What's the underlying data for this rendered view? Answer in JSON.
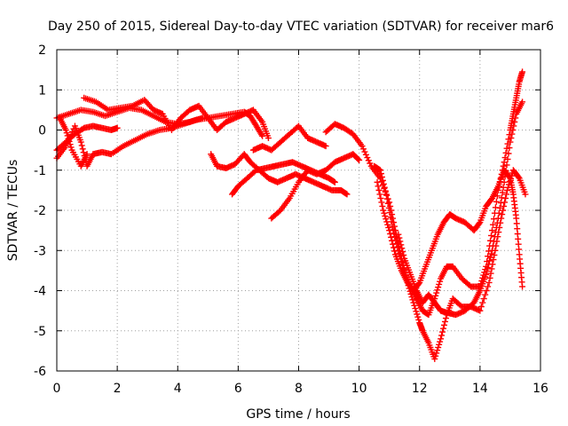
{
  "chart_data": {
    "type": "scatter",
    "title": "Day 250 of 2015, Sidereal Day-to-day VTEC variation (SDTVAR) for receiver mar6",
    "xlabel": "GPS time / hours",
    "ylabel": "SDTVAR / TECUs",
    "xlim": [
      0,
      16
    ],
    "ylim": [
      -6,
      2
    ],
    "x_ticks": [
      "0",
      "2",
      "4",
      "6",
      "8",
      "10",
      "12",
      "14",
      "16"
    ],
    "y_ticks": [
      "-6",
      "-5",
      "-4",
      "-3",
      "-2",
      "-1",
      "0",
      "1",
      "2"
    ],
    "grid": true,
    "marker": "+",
    "color": "#ff0000",
    "tracks": [
      {
        "points": [
          [
            0.0,
            0.3
          ],
          [
            0.4,
            0.4
          ],
          [
            0.8,
            0.5
          ],
          [
            1.2,
            0.45
          ],
          [
            1.6,
            0.35
          ],
          [
            2.0,
            0.45
          ],
          [
            2.4,
            0.55
          ],
          [
            2.8,
            0.5
          ],
          [
            3.2,
            0.35
          ],
          [
            3.6,
            0.2
          ],
          [
            4.0,
            0.15
          ],
          [
            4.4,
            0.2
          ],
          [
            4.8,
            0.3
          ]
        ]
      },
      {
        "points": [
          [
            0.0,
            -0.5
          ],
          [
            0.3,
            -0.3
          ],
          [
            0.6,
            -0.1
          ],
          [
            0.9,
            0.05
          ],
          [
            1.2,
            0.1
          ],
          [
            1.5,
            0.05
          ],
          [
            1.8,
            0.0
          ],
          [
            2.0,
            0.05
          ]
        ]
      },
      {
        "points": [
          [
            0.0,
            -0.7
          ],
          [
            0.3,
            -0.4
          ],
          [
            0.6,
            0.1
          ],
          [
            0.8,
            -0.3
          ],
          [
            1.0,
            -0.9
          ],
          [
            1.2,
            -0.6
          ],
          [
            1.5,
            -0.55
          ],
          [
            1.8,
            -0.6
          ],
          [
            2.2,
            -0.4
          ],
          [
            2.6,
            -0.25
          ],
          [
            3.0,
            -0.1
          ],
          [
            3.4,
            0.0
          ],
          [
            3.8,
            0.05
          ],
          [
            4.2,
            0.15
          ],
          [
            4.6,
            0.25
          ],
          [
            5.0,
            0.3
          ],
          [
            5.4,
            0.35
          ],
          [
            5.8,
            0.4
          ],
          [
            6.2,
            0.45
          ],
          [
            6.4,
            0.35
          ],
          [
            6.6,
            0.1
          ],
          [
            6.8,
            -0.15
          ]
        ]
      },
      {
        "points": [
          [
            0.1,
            0.3
          ],
          [
            0.3,
            0.0
          ],
          [
            0.5,
            -0.5
          ],
          [
            0.8,
            -0.9
          ],
          [
            1.0,
            -0.6
          ]
        ]
      },
      {
        "points": [
          [
            0.9,
            0.8
          ],
          [
            1.3,
            0.7
          ],
          [
            1.7,
            0.5
          ],
          [
            2.1,
            0.55
          ],
          [
            2.5,
            0.6
          ],
          [
            2.9,
            0.75
          ],
          [
            3.2,
            0.5
          ],
          [
            3.5,
            0.4
          ],
          [
            3.8,
            0.0
          ],
          [
            4.1,
            0.3
          ],
          [
            4.4,
            0.5
          ],
          [
            4.7,
            0.6
          ],
          [
            5.0,
            0.3
          ],
          [
            5.3,
            0.0
          ],
          [
            5.6,
            0.2
          ],
          [
            5.9,
            0.3
          ],
          [
            6.2,
            0.4
          ],
          [
            6.5,
            0.5
          ],
          [
            6.8,
            0.2
          ],
          [
            7.0,
            -0.2
          ]
        ]
      },
      {
        "points": [
          [
            5.1,
            -0.6
          ],
          [
            5.3,
            -0.9
          ],
          [
            5.6,
            -0.95
          ],
          [
            5.9,
            -0.85
          ],
          [
            6.2,
            -0.6
          ],
          [
            6.4,
            -0.8
          ],
          [
            6.7,
            -1.0
          ],
          [
            7.0,
            -1.2
          ],
          [
            7.3,
            -1.3
          ],
          [
            7.6,
            -1.2
          ],
          [
            7.9,
            -1.1
          ],
          [
            8.2,
            -1.2
          ],
          [
            8.5,
            -1.3
          ],
          [
            8.8,
            -1.4
          ],
          [
            9.1,
            -1.5
          ],
          [
            9.4,
            -1.5
          ],
          [
            9.6,
            -1.6
          ]
        ]
      },
      {
        "points": [
          [
            5.8,
            -1.6
          ],
          [
            6.0,
            -1.4
          ],
          [
            6.3,
            -1.2
          ],
          [
            6.6,
            -1.0
          ],
          [
            6.9,
            -0.95
          ],
          [
            7.2,
            -0.9
          ],
          [
            7.5,
            -0.85
          ],
          [
            7.8,
            -0.8
          ],
          [
            8.1,
            -0.9
          ],
          [
            8.4,
            -1.0
          ],
          [
            8.7,
            -1.1
          ],
          [
            9.0,
            -1.2
          ],
          [
            9.2,
            -1.3
          ]
        ]
      },
      {
        "points": [
          [
            6.5,
            -0.5
          ],
          [
            6.8,
            -0.4
          ],
          [
            7.1,
            -0.5
          ],
          [
            7.4,
            -0.3
          ],
          [
            7.7,
            -0.1
          ],
          [
            8.0,
            0.1
          ],
          [
            8.3,
            -0.2
          ],
          [
            8.6,
            -0.3
          ],
          [
            8.9,
            -0.4
          ]
        ]
      },
      {
        "points": [
          [
            7.1,
            -2.2
          ],
          [
            7.4,
            -2.0
          ],
          [
            7.7,
            -1.7
          ],
          [
            8.0,
            -1.3
          ],
          [
            8.3,
            -1.0
          ],
          [
            8.6,
            -1.1
          ],
          [
            8.9,
            -1.0
          ],
          [
            9.2,
            -0.8
          ],
          [
            9.5,
            -0.7
          ],
          [
            9.8,
            -0.6
          ],
          [
            10.0,
            -0.75
          ]
        ]
      },
      {
        "points": [
          [
            8.9,
            -0.05
          ],
          [
            9.2,
            0.15
          ],
          [
            9.5,
            0.05
          ],
          [
            9.8,
            -0.1
          ],
          [
            10.1,
            -0.4
          ],
          [
            10.4,
            -0.9
          ],
          [
            10.7,
            -1.2
          ],
          [
            11.0,
            -1.8
          ],
          [
            11.2,
            -2.5
          ],
          [
            11.4,
            -3.2
          ],
          [
            11.6,
            -3.8
          ],
          [
            11.8,
            -4.3
          ],
          [
            12.0,
            -4.8
          ],
          [
            12.1,
            -5.0
          ],
          [
            12.3,
            -5.3
          ],
          [
            12.5,
            -5.7
          ],
          [
            12.7,
            -5.2
          ],
          [
            12.9,
            -4.6
          ],
          [
            13.1,
            -4.2
          ],
          [
            13.4,
            -4.4
          ],
          [
            13.7,
            -4.4
          ],
          [
            14.0,
            -4.5
          ],
          [
            14.3,
            -3.8
          ],
          [
            14.5,
            -3.0
          ],
          [
            14.7,
            -2.2
          ],
          [
            14.9,
            -1.5
          ],
          [
            15.1,
            -1.0
          ],
          [
            15.3,
            -1.2
          ],
          [
            15.5,
            -1.6
          ]
        ]
      },
      {
        "points": [
          [
            10.5,
            -0.9
          ],
          [
            10.7,
            -1.0
          ],
          [
            10.9,
            -1.6
          ],
          [
            11.1,
            -2.4
          ],
          [
            11.3,
            -3.0
          ],
          [
            11.5,
            -3.5
          ],
          [
            11.7,
            -3.9
          ],
          [
            11.9,
            -4.2
          ],
          [
            12.1,
            -4.5
          ],
          [
            12.3,
            -4.6
          ],
          [
            12.5,
            -4.2
          ],
          [
            12.7,
            -3.7
          ],
          [
            12.9,
            -3.4
          ],
          [
            13.1,
            -3.4
          ],
          [
            13.4,
            -3.7
          ],
          [
            13.7,
            -3.9
          ],
          [
            14.0,
            -3.9
          ],
          [
            14.2,
            -3.4
          ],
          [
            14.4,
            -2.5
          ],
          [
            14.6,
            -1.5
          ],
          [
            14.8,
            -0.8
          ],
          [
            15.0,
            0.0
          ],
          [
            15.1,
            0.4
          ],
          [
            15.2,
            0.8
          ],
          [
            15.3,
            1.2
          ],
          [
            15.4,
            1.45
          ]
        ]
      },
      {
        "points": [
          [
            10.6,
            -1.3
          ],
          [
            10.8,
            -2.0
          ],
          [
            11.0,
            -2.5
          ],
          [
            11.2,
            -3.1
          ],
          [
            11.4,
            -3.5
          ],
          [
            11.6,
            -3.8
          ],
          [
            11.8,
            -4.0
          ],
          [
            12.0,
            -3.8
          ],
          [
            12.2,
            -3.4
          ],
          [
            12.4,
            -3.0
          ],
          [
            12.6,
            -2.6
          ],
          [
            12.8,
            -2.3
          ],
          [
            13.0,
            -2.1
          ],
          [
            13.2,
            -2.2
          ],
          [
            13.5,
            -2.3
          ],
          [
            13.8,
            -2.5
          ],
          [
            14.0,
            -2.3
          ],
          [
            14.2,
            -1.9
          ],
          [
            14.4,
            -1.7
          ],
          [
            14.6,
            -1.4
          ],
          [
            14.8,
            -1.0
          ],
          [
            15.0,
            -1.2
          ],
          [
            15.1,
            -1.6
          ],
          [
            15.2,
            -2.2
          ],
          [
            15.3,
            -3.1
          ],
          [
            15.4,
            -3.9
          ]
        ]
      },
      {
        "points": [
          [
            11.3,
            -2.6
          ],
          [
            11.5,
            -3.2
          ],
          [
            11.7,
            -3.6
          ],
          [
            11.9,
            -4.0
          ],
          [
            12.1,
            -4.3
          ],
          [
            12.3,
            -4.1
          ],
          [
            12.5,
            -4.3
          ],
          [
            12.7,
            -4.5
          ],
          [
            12.9,
            -4.55
          ],
          [
            13.2,
            -4.6
          ],
          [
            13.5,
            -4.5
          ],
          [
            13.8,
            -4.3
          ],
          [
            14.0,
            -4.0
          ],
          [
            14.2,
            -3.6
          ],
          [
            14.4,
            -3.0
          ],
          [
            14.6,
            -2.2
          ],
          [
            14.8,
            -1.3
          ],
          [
            15.0,
            -0.3
          ],
          [
            15.2,
            0.4
          ],
          [
            15.4,
            0.7
          ]
        ]
      }
    ]
  }
}
